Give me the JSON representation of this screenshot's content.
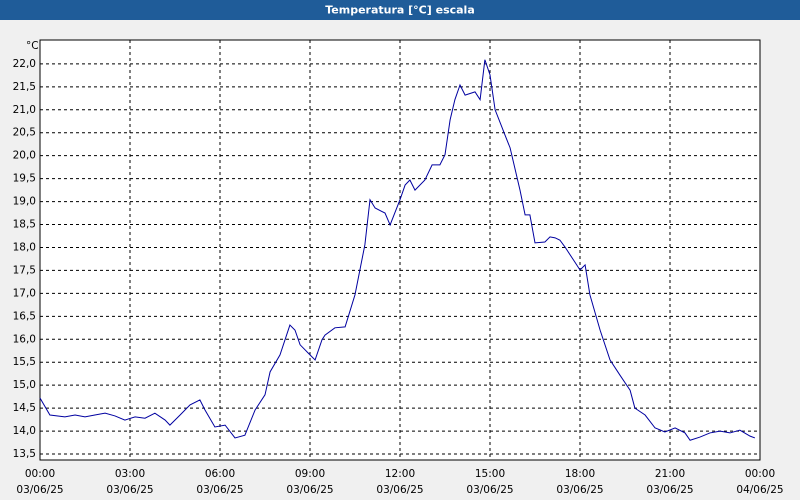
{
  "chart_data": {
    "type": "line",
    "title": "Temperatura [°C] escala",
    "y_label": "°C",
    "x": [
      0,
      0.33,
      0.83,
      1.17,
      1.5,
      1.83,
      2.17,
      2.5,
      2.83,
      3.17,
      3.5,
      3.83,
      4.17,
      4.33,
      4.67,
      5,
      5.33,
      5.5,
      5.83,
      6.17,
      6.5,
      6.83,
      7.17,
      7.5,
      7.67,
      8,
      8.33,
      8.5,
      8.67,
      9,
      9.17,
      9.4,
      9.5,
      9.83,
      10.17,
      10.5,
      10.83,
      11,
      11.17,
      11.5,
      11.67,
      12,
      12.17,
      12.33,
      12.5,
      12.83,
      13.07,
      13.33,
      13.5,
      13.67,
      13.83,
      14,
      14.17,
      14.5,
      14.67,
      14.83,
      15,
      15.17,
      15.5,
      15.67,
      16,
      16.17,
      16.33,
      16.5,
      16.83,
      17,
      17.17,
      17.33,
      17.5,
      17.83,
      18,
      18.17,
      18.33,
      18.67,
      19,
      19.33,
      19.67,
      19.83,
      20.17,
      20.5,
      20.83,
      21.17,
      21.5,
      21.67,
      22,
      22.33,
      22.67,
      23,
      23.33,
      23.67,
      23.83
    ],
    "values": [
      14.72,
      14.35,
      14.31,
      14.35,
      14.31,
      14.35,
      14.39,
      14.33,
      14.24,
      14.31,
      14.28,
      14.39,
      14.24,
      14.13,
      14.35,
      14.57,
      14.68,
      14.46,
      14.09,
      14.13,
      13.85,
      13.91,
      14.46,
      14.79,
      15.29,
      15.66,
      16.31,
      16.2,
      15.88,
      15.66,
      15.55,
      15.99,
      16.09,
      16.25,
      16.27,
      16.97,
      18.06,
      19.04,
      18.86,
      18.75,
      18.49,
      19.04,
      19.36,
      19.47,
      19.25,
      19.47,
      19.8,
      19.8,
      20.02,
      20.78,
      21.22,
      21.54,
      21.32,
      21.39,
      21.22,
      22.09,
      21.76,
      21.0,
      20.45,
      20.17,
      19.25,
      18.71,
      18.71,
      18.1,
      18.12,
      18.23,
      18.21,
      18.16,
      18.01,
      17.68,
      17.51,
      17.62,
      16.97,
      16.2,
      15.55,
      15.22,
      14.89,
      14.5,
      14.35,
      14.07,
      13.98,
      14.07,
      13.96,
      13.8,
      13.87,
      13.96,
      14.0,
      13.96,
      14.02,
      13.89,
      13.85
    ],
    "color": "#0000a0",
    "xlim": [
      0,
      24
    ],
    "xticks": [
      {
        "value": 0,
        "label": "00:00",
        "date": "03/06/25"
      },
      {
        "value": 3,
        "label": "03:00",
        "date": "03/06/25"
      },
      {
        "value": 6,
        "label": "06:00",
        "date": "03/06/25"
      },
      {
        "value": 9,
        "label": "09:00",
        "date": "03/06/25"
      },
      {
        "value": 12,
        "label": "12:00",
        "date": "03/06/25"
      },
      {
        "value": 15,
        "label": "15:00",
        "date": "03/06/25"
      },
      {
        "value": 18,
        "label": "18:00",
        "date": "03/06/25"
      },
      {
        "value": 21,
        "label": "21:00",
        "date": "03/06/25"
      },
      {
        "value": 24,
        "label": "00:00",
        "date": "04/06/25"
      }
    ],
    "ylim": [
      13.37,
      22.52
    ],
    "yticks": [
      {
        "value": 13.5,
        "label": "13,5"
      },
      {
        "value": 14,
        "label": "14,0"
      },
      {
        "value": 14.5,
        "label": "14,5"
      },
      {
        "value": 15,
        "label": "15,0"
      },
      {
        "value": 15.5,
        "label": "15,5"
      },
      {
        "value": 16,
        "label": "16,0"
      },
      {
        "value": 16.5,
        "label": "16,5"
      },
      {
        "value": 17,
        "label": "17,0"
      },
      {
        "value": 17.5,
        "label": "17,5"
      },
      {
        "value": 18,
        "label": "18,0"
      },
      {
        "value": 18.5,
        "label": "18,5"
      },
      {
        "value": 19,
        "label": "19,0"
      },
      {
        "value": 19.5,
        "label": "19,5"
      },
      {
        "value": 20,
        "label": "20,0"
      },
      {
        "value": 20.5,
        "label": "20,5"
      },
      {
        "value": 21,
        "label": "21,0"
      },
      {
        "value": 21.5,
        "label": "21,5"
      },
      {
        "value": 22,
        "label": "22,0"
      }
    ],
    "grid": true
  }
}
